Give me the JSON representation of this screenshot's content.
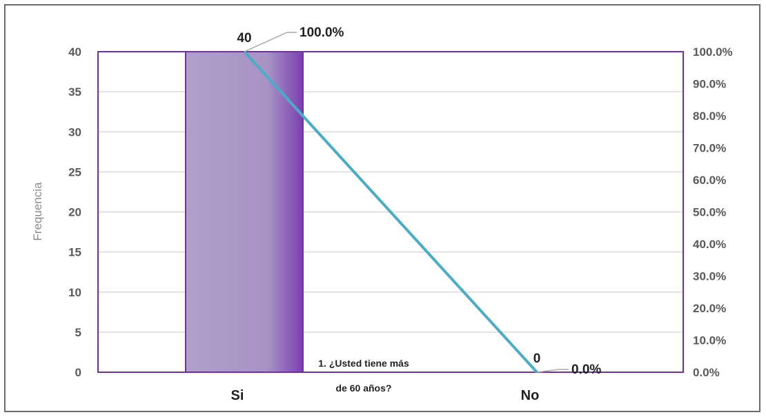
{
  "chart_data": {
    "type": "bar",
    "categories": [
      "Si",
      "No"
    ],
    "series": [
      {
        "type": "bar",
        "values": [
          40,
          0
        ],
        "color": "#a48fc2"
      },
      {
        "type": "line",
        "values": [
          100.0,
          0.0
        ],
        "color": "#4aacc6",
        "axis": "right"
      }
    ],
    "bar_labels": [
      "40",
      "0"
    ],
    "line_labels": [
      "100.0%",
      "0.0%"
    ],
    "ylabel": "Frequencia",
    "xlabel": "",
    "ylim": [
      0,
      40
    ],
    "y_ticks": [
      "0",
      "5",
      "10",
      "15",
      "20",
      "25",
      "30",
      "35",
      "40"
    ],
    "y2lim": [
      0,
      100
    ],
    "y2_ticks": [
      "0.0%",
      "10.0%",
      "20.0%",
      "30.0%",
      "40.0%",
      "50.0%",
      "60.0%",
      "70.0%",
      "80.0%",
      "90.0%",
      "100.0%"
    ],
    "annotation_lines": [
      "1. ¿Usted tiene más",
      "de 60 años?"
    ],
    "grid": true,
    "legend": "none",
    "colors": {
      "plot_border": "#7030a0",
      "gridline": "#d9d9d9",
      "bar": "#a48fc2",
      "bar_edge": "#7030a0",
      "line": "#4aacc6"
    }
  }
}
